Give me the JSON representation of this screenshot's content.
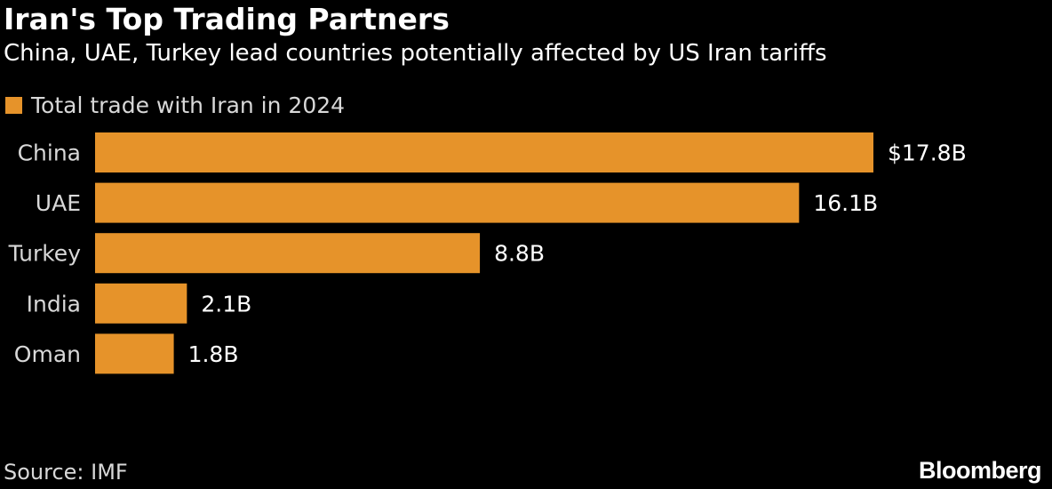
{
  "header": {
    "title": "Iran's Top Trading Partners",
    "subtitle": "China, UAE, Turkey lead countries potentially affected by US Iran tariffs"
  },
  "footer": {
    "source": "Source: IMF",
    "brand": "Bloomberg"
  },
  "colors": {
    "background": "#000000",
    "bar": "#e6932a",
    "text": "#ffffff",
    "muted_text": "#d8d8d8"
  },
  "chart_data": {
    "type": "bar",
    "orientation": "horizontal",
    "title": "Iran's Top Trading Partners",
    "subtitle": "China, UAE, Turkey lead countries potentially affected by US Iran tariffs",
    "categories": [
      "China",
      "UAE",
      "Turkey",
      "India",
      "Oman"
    ],
    "series": [
      {
        "name": "Total trade with Iran in 2024",
        "values": [
          17.8,
          16.1,
          8.8,
          2.1,
          1.8
        ],
        "labels": [
          "$17.8B",
          "16.1B",
          "8.8B",
          "2.1B",
          "1.8B"
        ]
      }
    ],
    "legend_position": "top-left",
    "grid": false,
    "xlim": [
      0,
      17.8
    ]
  }
}
